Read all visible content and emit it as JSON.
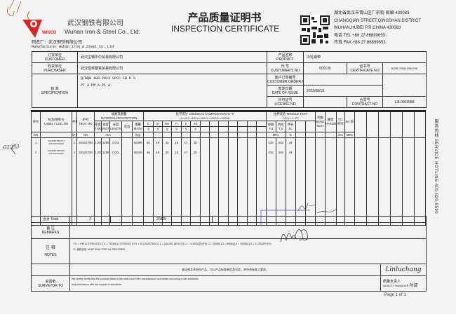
{
  "header": {
    "company_cn": "武汉钢铁有限公司",
    "company_en": "Wuhan Iron & Steel Co., Ltd.",
    "logo_text": "WISCO",
    "manufacturer_cn": "制造厂：武汉钢铁有限公司",
    "manufacturer_en": "Manufacturer  Wuhan Iron & Steel Co. Ltd",
    "title_cn": "产品质量证明书",
    "title_en": "INSPECTION CERTIFICATE",
    "address": [
      "湖北省武汉市青山区厂前街 邮编 430083",
      "CHANGQIAN STREET,QINGSHAN DISTRICT",
      "WUHAN,HUBEI P.R.CHINA 430083",
      "电话   TEL +86 27 86899653",
      "传真   FAX +86 27 86899653"
    ]
  },
  "info": {
    "customer_label_cn": "订货单位",
    "customer_label": "CUSTOMER",
    "customer": "武汉宝钢华中贸易有限公司",
    "purchaser_label_cn": "收货单位",
    "purchaser_label": "PURCHASER",
    "purchaser": "武汉恒邦钢铁贸易有限公司",
    "spec_label_cn": "标  准",
    "spec_label": "SPECIFICATION",
    "spec_line1": "Q/BQB 408-2023 SPCC FB D S",
    "spec_line2": "PT A-PM A-PF A",
    "product_label_cn": "产品名称",
    "product_label": "PRODUCT",
    "product": "冷轧钢带",
    "custno_label_cn": "代  号",
    "custno_label": "CUSTOMER'S NO",
    "custno": "000136",
    "cert_label_cn": "证书号",
    "cert_label": "CERTIFICATE NO",
    "cert": "BGBL230819084790",
    "order_label_cn": "客户订单编号",
    "order_label": "CUSTOMER ORDER NO",
    "order": "",
    "date_label_cn": "签发日期",
    "date_label": "DATE OF ISSUE",
    "date": "2023/08/19",
    "license_label_cn": "许可证号",
    "license_label": "LICENSE NO",
    "license": "",
    "contract_label_cn": "合同号",
    "contract_label": "CONTRACT NO",
    "contract": "L3L0002588"
  },
  "table": {
    "h_no": "序号",
    "h_no_en": "NO",
    "h_label": "标签/钢卷号",
    "h_label_en": "LABEL / COIL NO",
    "h_qty": "件数",
    "h_qty_en": "Q'TY",
    "h_heat": "炉号",
    "h_heat_en": "HEAT NO",
    "h_material": "规格及重量",
    "h_material_en": "MATERIAL DESCRIPTION",
    "h_thick": "厚度 THICK",
    "h_width": "宽度 WIDTH",
    "h_length": "长度 LENGTH",
    "h_edge": "毛边",
    "h_mass": "重量 MASS",
    "h_mm": "mm",
    "h_mass_unit": "(kg)",
    "h_chem": "化学成分  CHEMICAL COMPOSITION % *0",
    "h_chem_scale": "(1=×10  2=×100  3=×1000  4=×10000  5=×100000)",
    "chem_elems": [
      "C",
      "Si",
      "Mn",
      "P",
      "S",
      "Alt"
    ],
    "chem_scale_vals": [
      "3",
      "3",
      "2",
      "3",
      "3",
      "3"
    ],
    "h_tensile": "拉伸试验 TENSILE TEST",
    "h_gl": "( G L = L 2 )",
    "h_ys": "屈服 Y.S",
    "h_ts": "抗拉 T.S",
    "h_el": "伸长 EL",
    "h_mpa": "MPa",
    "h_pct": "%",
    "h_bend": "弯曲 BEND TEST",
    "h_hard": "硬度 HARDNESS",
    "h_erich": "*01 杯突",
    "h_erich_unit": "mm",
    "h_bh": "BH 值",
    "h_bh_unit": "MPa",
    "rows": [
      {
        "no": "1",
        "label": "S2230817862701 3231446790180",
        "qty": "1",
        "heat": "S3424790",
        "thick": "1.00",
        "width": "1250",
        "length": "COIL",
        "mass": "10380",
        "chem": [
          "46",
          "19",
          "25",
          "18",
          "17",
          "30"
        ],
        "ys": "215",
        "ts": "349",
        "el": "44"
      },
      {
        "no": "2",
        "label": "S2230817862702 3231446790260",
        "qty": "1",
        "heat": "S3424790",
        "thick": "1.00",
        "width": "1250",
        "length": "COIL",
        "mass": "10440",
        "chem": [
          "46",
          "19",
          "25",
          "18",
          "17",
          "30"
        ],
        "ys": "215",
        "ts": "349",
        "el": "44"
      }
    ],
    "total_label": "合计  Total",
    "total_qty": "2",
    "total_mass": "20820"
  },
  "bottom": {
    "remarks_cn": "备  注",
    "remarks_en": "REMARKS",
    "notes_cn": "注  释",
    "notes_en": "NOTES",
    "notes_line1": "Y.S = YIELD STRENGTH     T.S = TENSILE STRENGTH     EL = ELONGATION     G.L = GAUGE LENGTH     L1 = 5.65SQRT(F0)     L2 = 50MM     L3 = 80MM     L4 = 200MM     L5 = 11.3SQRT(F0)",
    "notes_line2": "*0: 熔炼分析  HEAT ANALYSIS  *01 ERICHSEN",
    "certify_cn": "兹证明本表所列产品，均以产品标准制造及试验，并符合标准之要求。",
    "certify_en1": "We hereby certify that the products listed in the table have been manufactured and tested according to the standards",
    "certify_en2": "and accordance with the request of standards",
    "surveyor_cn": "会验者",
    "surveyor_en": "SURVEYOR TO",
    "qm_signature": "Linluchang",
    "qm_cn": "质量负责人",
    "qm_en": "QUALITY MANAGER",
    "qm_stamp": "孙波"
  },
  "side_text": "服务热线 SERVICE HOTLINE  400-820-8590",
  "page": "Page   1   of   1",
  "handwritten_left": "G2233"
}
